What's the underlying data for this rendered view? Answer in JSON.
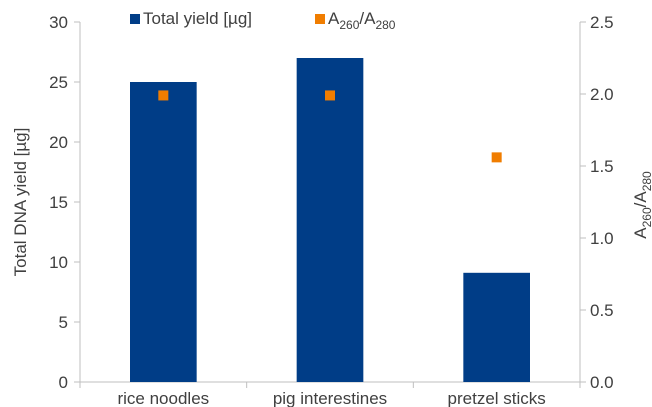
{
  "chart_data": {
    "type": "bar",
    "categories": [
      "rice noodles",
      "pig interestines",
      "pretzel sticks"
    ],
    "series": [
      {
        "name": "Total yield [µg]",
        "kind": "bar",
        "axis": "left",
        "color": "#003d87",
        "values": [
          25,
          27,
          9.1
        ]
      },
      {
        "name": "A260/A280",
        "kind": "scatter",
        "axis": "right",
        "color": "#f07d00",
        "values": [
          1.99,
          1.99,
          1.56
        ]
      }
    ],
    "legend": {
      "position": "top",
      "items": [
        {
          "text": "Total yield [µg]"
        },
        {
          "main": "A",
          "sub1": "260",
          "slash": "/A",
          "sub2": "280"
        }
      ]
    },
    "ylabel": "Total DNA yield [µg]",
    "y2label": {
      "main": "A",
      "sub1": "260",
      "slash": "/A",
      "sub2": "280"
    },
    "ylim": [
      0,
      30
    ],
    "y2lim": [
      0,
      2.5
    ],
    "yticks": [
      "0",
      "5",
      "10",
      "15",
      "20",
      "25",
      "30"
    ],
    "y2ticks": [
      "0.0",
      "0.5",
      "1.0",
      "1.5",
      "2.0",
      "2.5"
    ],
    "grid": false
  }
}
